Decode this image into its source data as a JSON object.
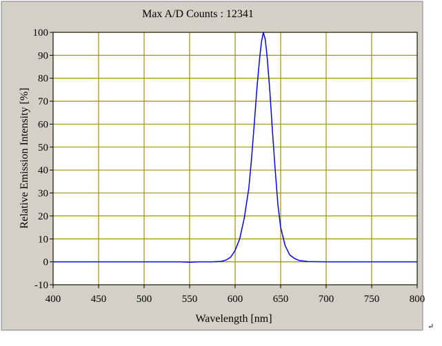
{
  "chart_data": {
    "type": "line",
    "title": "Max A/D Counts : 12341",
    "xlabel": "Wavelength [nm]",
    "ylabel": "Relative Emission Intensity [%]",
    "xlim": [
      400,
      800
    ],
    "ylim": [
      -10,
      100
    ],
    "xticks": [
      400,
      450,
      500,
      550,
      600,
      650,
      700,
      750,
      800
    ],
    "yticks": [
      -10,
      0,
      10,
      20,
      30,
      40,
      50,
      60,
      70,
      80,
      90,
      100
    ],
    "grid": true,
    "legend": "none",
    "series": [
      {
        "color": "#0000ff",
        "x": [
          400,
          450,
          500,
          540,
          550,
          560,
          575,
          585,
          590,
          595,
          600,
          605,
          610,
          615,
          618,
          621,
          624,
          627,
          629,
          631,
          633,
          635,
          638,
          641,
          644,
          647,
          650,
          655,
          660,
          665,
          670,
          680,
          700,
          750,
          800
        ],
        "y": [
          0,
          0,
          0,
          0,
          -0.2,
          0,
          0,
          0.2,
          0.8,
          2,
          5,
          10,
          19,
          32,
          45,
          60,
          76,
          89,
          96,
          100,
          97,
          90,
          75,
          57,
          40,
          25,
          15,
          7,
          3,
          1.5,
          0.6,
          0.1,
          0,
          0,
          0
        ]
      }
    ],
    "colors": {
      "background": "#d4d0c8",
      "plot_background": "#ffffff",
      "grid": "#a09000",
      "frame": "#000000",
      "line": "#0000ff"
    }
  },
  "corner_mark": "↵"
}
